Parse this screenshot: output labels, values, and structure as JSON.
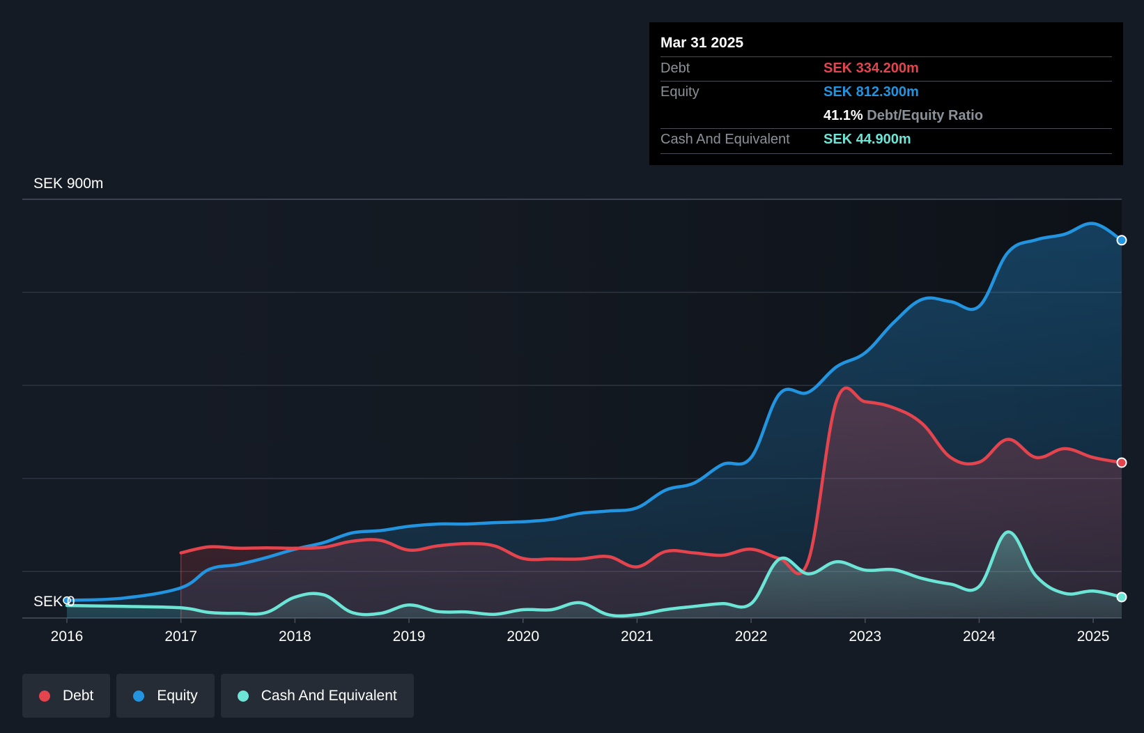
{
  "colors": {
    "background": "#151b24",
    "debt": "#e4444d",
    "equity": "#2394df",
    "cash": "#6ce5d6",
    "grid": "#2e3540",
    "axis_text": "#ffffff"
  },
  "tooltip": {
    "date": "Mar 31 2025",
    "debt_label": "Debt",
    "debt_value": "SEK 334.200m",
    "equity_label": "Equity",
    "equity_value": "SEK 812.300m",
    "ratio_value": "41.1%",
    "ratio_label": "Debt/Equity Ratio",
    "cash_label": "Cash And Equivalent",
    "cash_value": "SEK 44.900m"
  },
  "legend": [
    {
      "label": "Debt",
      "color": "#e4444d"
    },
    {
      "label": "Equity",
      "color": "#2394df"
    },
    {
      "label": "Cash And Equivalent",
      "color": "#6ce5d6"
    }
  ],
  "chart_data": {
    "type": "area",
    "title": "",
    "y_top_label": "SEK 900m",
    "y_bottom_label": "SEK 0",
    "ylim": [
      0,
      900
    ],
    "xlim": [
      2016.0,
      2025.25
    ],
    "x_ticks": [
      "2016",
      "2017",
      "2018",
      "2019",
      "2020",
      "2021",
      "2022",
      "2023",
      "2024",
      "2025"
    ],
    "series": [
      {
        "name": "Equity",
        "color": "#2394df",
        "points": [
          [
            2016.0,
            38
          ],
          [
            2016.5,
            43
          ],
          [
            2017.0,
            65
          ],
          [
            2017.25,
            105
          ],
          [
            2017.5,
            115
          ],
          [
            2017.75,
            130
          ],
          [
            2018.0,
            148
          ],
          [
            2018.25,
            162
          ],
          [
            2018.5,
            183
          ],
          [
            2018.75,
            188
          ],
          [
            2019.0,
            197
          ],
          [
            2019.25,
            202
          ],
          [
            2019.5,
            202
          ],
          [
            2019.75,
            205
          ],
          [
            2020.0,
            207
          ],
          [
            2020.25,
            212
          ],
          [
            2020.5,
            225
          ],
          [
            2020.75,
            230
          ],
          [
            2021.0,
            237
          ],
          [
            2021.25,
            275
          ],
          [
            2021.5,
            290
          ],
          [
            2021.75,
            330
          ],
          [
            2022.0,
            345
          ],
          [
            2022.25,
            482
          ],
          [
            2022.5,
            485
          ],
          [
            2022.75,
            540
          ],
          [
            2023.0,
            570
          ],
          [
            2023.25,
            635
          ],
          [
            2023.5,
            685
          ],
          [
            2023.75,
            680
          ],
          [
            2024.0,
            670
          ],
          [
            2024.25,
            785
          ],
          [
            2024.5,
            813
          ],
          [
            2024.75,
            825
          ],
          [
            2025.0,
            848
          ],
          [
            2025.25,
            812
          ]
        ]
      },
      {
        "name": "Debt",
        "color": "#e4444d",
        "points": [
          [
            2017.0,
            140
          ],
          [
            2017.25,
            153
          ],
          [
            2017.5,
            150
          ],
          [
            2017.75,
            151
          ],
          [
            2018.0,
            150
          ],
          [
            2018.25,
            152
          ],
          [
            2018.5,
            165
          ],
          [
            2018.75,
            167
          ],
          [
            2019.0,
            146
          ],
          [
            2019.25,
            155
          ],
          [
            2019.5,
            160
          ],
          [
            2019.75,
            155
          ],
          [
            2020.0,
            128
          ],
          [
            2020.25,
            127
          ],
          [
            2020.5,
            127
          ],
          [
            2020.75,
            132
          ],
          [
            2021.0,
            110
          ],
          [
            2021.25,
            143
          ],
          [
            2021.5,
            140
          ],
          [
            2021.75,
            135
          ],
          [
            2022.0,
            148
          ],
          [
            2022.25,
            128
          ],
          [
            2022.5,
            122
          ],
          [
            2022.75,
            467
          ],
          [
            2023.0,
            465
          ],
          [
            2023.25,
            452
          ],
          [
            2023.5,
            418
          ],
          [
            2023.75,
            345
          ],
          [
            2024.0,
            335
          ],
          [
            2024.25,
            384
          ],
          [
            2024.5,
            345
          ],
          [
            2024.75,
            364
          ],
          [
            2025.0,
            345
          ],
          [
            2025.25,
            334
          ]
        ]
      },
      {
        "name": "Cash And Equivalent",
        "color": "#6ce5d6",
        "points": [
          [
            2016.0,
            27
          ],
          [
            2016.5,
            25
          ],
          [
            2017.0,
            22
          ],
          [
            2017.25,
            12
          ],
          [
            2017.5,
            10
          ],
          [
            2017.75,
            12
          ],
          [
            2018.0,
            45
          ],
          [
            2018.25,
            50
          ],
          [
            2018.5,
            12
          ],
          [
            2018.75,
            10
          ],
          [
            2019.0,
            28
          ],
          [
            2019.25,
            14
          ],
          [
            2019.5,
            13
          ],
          [
            2019.75,
            8
          ],
          [
            2020.0,
            18
          ],
          [
            2020.25,
            18
          ],
          [
            2020.5,
            33
          ],
          [
            2020.75,
            7
          ],
          [
            2021.0,
            7
          ],
          [
            2021.25,
            18
          ],
          [
            2021.5,
            25
          ],
          [
            2021.75,
            31
          ],
          [
            2022.0,
            31
          ],
          [
            2022.25,
            127
          ],
          [
            2022.5,
            95
          ],
          [
            2022.75,
            121
          ],
          [
            2023.0,
            103
          ],
          [
            2023.25,
            104
          ],
          [
            2023.5,
            85
          ],
          [
            2023.75,
            73
          ],
          [
            2024.0,
            68
          ],
          [
            2024.25,
            185
          ],
          [
            2024.5,
            90
          ],
          [
            2024.75,
            53
          ],
          [
            2025.0,
            58
          ],
          [
            2025.25,
            45
          ]
        ]
      }
    ]
  }
}
